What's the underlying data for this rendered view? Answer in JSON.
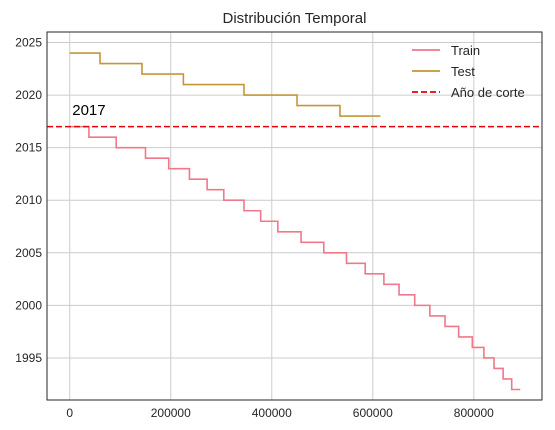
{
  "chart_data": {
    "type": "line",
    "title": "Distribución Temporal",
    "xlabel": "",
    "ylabel": "",
    "xlim": [
      -45000,
      935000
    ],
    "ylim": [
      1991,
      2026
    ],
    "xticks": [
      0,
      200000,
      400000,
      600000,
      800000
    ],
    "xtick_labels": [
      "0",
      "200000",
      "400000",
      "600000",
      "800000"
    ],
    "yticks": [
      1995,
      2000,
      2005,
      2010,
      2015,
      2020,
      2025
    ],
    "ytick_labels": [
      "1995",
      "2000",
      "2005",
      "2010",
      "2015",
      "2020",
      "2025"
    ],
    "grid": true,
    "legend_position": "top-right",
    "series": [
      {
        "name": "Train",
        "color": "#f0788a",
        "style": "step",
        "steps": [
          {
            "x0": 0,
            "x1": 38000,
            "y": 2017
          },
          {
            "x0": 38000,
            "x1": 92000,
            "y": 2016
          },
          {
            "x0": 92000,
            "x1": 150000,
            "y": 2015
          },
          {
            "x0": 150000,
            "x1": 196000,
            "y": 2014
          },
          {
            "x0": 196000,
            "x1": 237000,
            "y": 2013
          },
          {
            "x0": 237000,
            "x1": 272000,
            "y": 2012
          },
          {
            "x0": 272000,
            "x1": 305000,
            "y": 2011
          },
          {
            "x0": 305000,
            "x1": 345000,
            "y": 2010
          },
          {
            "x0": 345000,
            "x1": 378000,
            "y": 2009
          },
          {
            "x0": 378000,
            "x1": 412000,
            "y": 2008
          },
          {
            "x0": 412000,
            "x1": 458000,
            "y": 2007
          },
          {
            "x0": 458000,
            "x1": 503000,
            "y": 2006
          },
          {
            "x0": 503000,
            "x1": 548000,
            "y": 2005
          },
          {
            "x0": 548000,
            "x1": 585000,
            "y": 2004
          },
          {
            "x0": 585000,
            "x1": 622000,
            "y": 2003
          },
          {
            "x0": 622000,
            "x1": 652000,
            "y": 2002
          },
          {
            "x0": 652000,
            "x1": 683000,
            "y": 2001
          },
          {
            "x0": 683000,
            "x1": 713000,
            "y": 2000
          },
          {
            "x0": 713000,
            "x1": 743000,
            "y": 1999
          },
          {
            "x0": 743000,
            "x1": 770000,
            "y": 1998
          },
          {
            "x0": 770000,
            "x1": 797000,
            "y": 1997
          },
          {
            "x0": 797000,
            "x1": 820000,
            "y": 1996
          },
          {
            "x0": 820000,
            "x1": 840000,
            "y": 1995
          },
          {
            "x0": 840000,
            "x1": 858000,
            "y": 1994
          },
          {
            "x0": 858000,
            "x1": 875000,
            "y": 1993
          },
          {
            "x0": 875000,
            "x1": 892000,
            "y": 1992
          }
        ]
      },
      {
        "name": "Test",
        "color": "#c4963a",
        "style": "step",
        "steps": [
          {
            "x0": 0,
            "x1": 60000,
            "y": 2024
          },
          {
            "x0": 60000,
            "x1": 143000,
            "y": 2023
          },
          {
            "x0": 143000,
            "x1": 225000,
            "y": 2022
          },
          {
            "x0": 225000,
            "x1": 345000,
            "y": 2021
          },
          {
            "x0": 345000,
            "x1": 450000,
            "y": 2020
          },
          {
            "x0": 450000,
            "x1": 535000,
            "y": 2019
          },
          {
            "x0": 535000,
            "x1": 615000,
            "y": 2018
          }
        ]
      }
    ],
    "reference_line": {
      "name": "Año de corte",
      "y": 2017,
      "color": "#e8000b",
      "style": "dashed"
    },
    "annotation": {
      "text": "2017",
      "x": 5000,
      "y": 2018.1
    }
  }
}
